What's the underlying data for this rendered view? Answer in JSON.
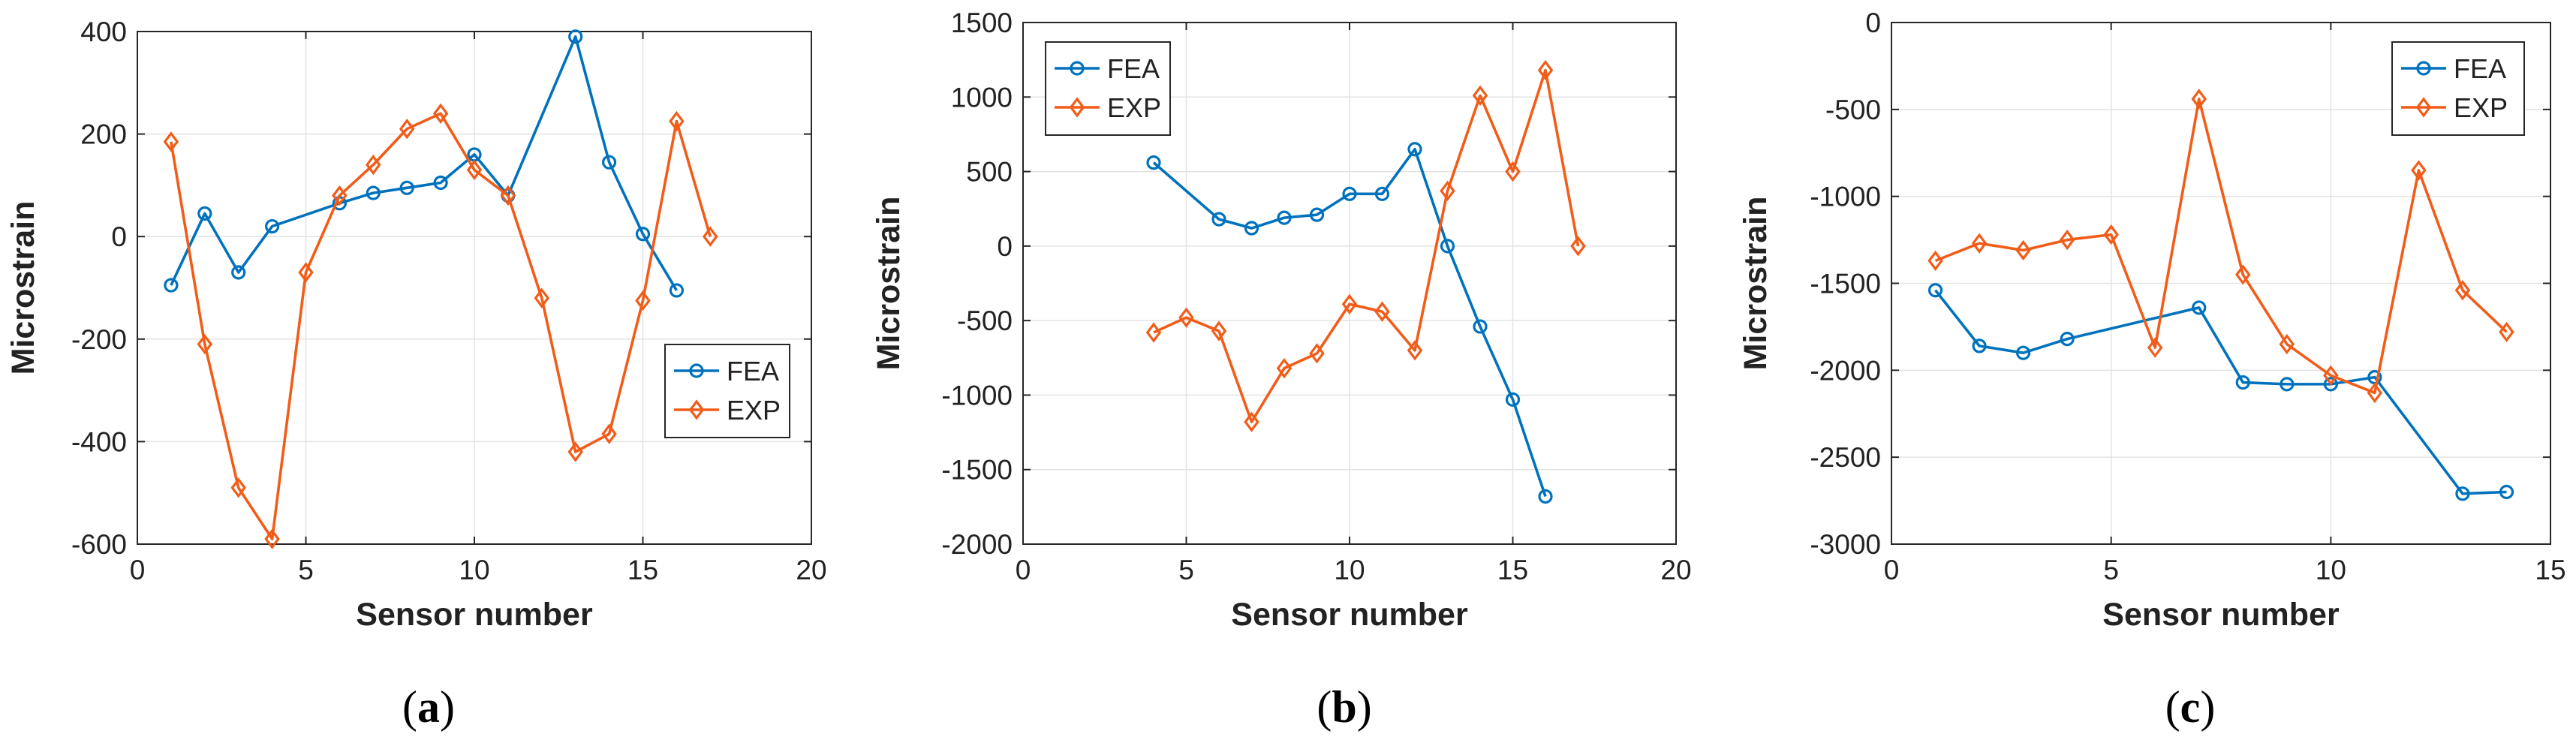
{
  "colors": {
    "fea": "#0072BD",
    "exp": "#F25C19",
    "axis": "#262626",
    "grid": "#e3e3e3"
  },
  "chart_data": [
    {
      "type": "line",
      "caption_letter": "a",
      "xlabel": "Sensor number",
      "ylabel": "Microstrain",
      "xlim": [
        0,
        20
      ],
      "ylim": [
        -600,
        400
      ],
      "xticks": [
        0,
        5,
        10,
        15,
        20
      ],
      "yticks": [
        -600,
        -400,
        -200,
        0,
        200,
        400
      ],
      "xtick_labels": [
        "0",
        "5",
        "10",
        "15",
        "20"
      ],
      "ytick_labels": [
        "-600",
        "-400",
        "-200",
        "0",
        "200",
        "400"
      ],
      "grid": true,
      "legend_position": "bottom-right",
      "series": [
        {
          "name": "FEA",
          "marker": "circle",
          "x": [
            1,
            2,
            3,
            4,
            6,
            7,
            8,
            9,
            10,
            11,
            13,
            14,
            15,
            16
          ],
          "y": [
            -95,
            45,
            -70,
            20,
            65,
            85,
            95,
            105,
            160,
            80,
            390,
            145,
            5,
            -105
          ]
        },
        {
          "name": "EXP",
          "marker": "diamond",
          "x": [
            1,
            2,
            3,
            4,
            5,
            6,
            7,
            8,
            9,
            10,
            11,
            12,
            13,
            14,
            15,
            16,
            17
          ],
          "y": [
            185,
            -210,
            -490,
            -590,
            -70,
            80,
            140,
            210,
            240,
            130,
            80,
            -120,
            -420,
            -385,
            -125,
            225,
            0
          ]
        }
      ]
    },
    {
      "type": "line",
      "caption_letter": "b",
      "xlabel": "Sensor number",
      "ylabel": "Microstrain",
      "xlim": [
        0,
        20
      ],
      "ylim": [
        -2000,
        1500
      ],
      "xticks": [
        0,
        5,
        10,
        15,
        20
      ],
      "yticks": [
        -2000,
        -1500,
        -1000,
        -500,
        0,
        500,
        1000,
        1500
      ],
      "xtick_labels": [
        "0",
        "5",
        "10",
        "15",
        "20"
      ],
      "ytick_labels": [
        "-2000",
        "-1500",
        "-1000",
        "-500",
        "0",
        "500",
        "1000",
        "1500"
      ],
      "grid": true,
      "legend_position": "top-left",
      "series": [
        {
          "name": "FEA",
          "marker": "circle",
          "x": [
            4,
            6,
            7,
            8,
            9,
            10,
            11,
            12,
            13,
            14,
            15,
            16
          ],
          "y": [
            560,
            180,
            120,
            190,
            210,
            350,
            350,
            650,
            0,
            -540,
            -1030,
            -1680
          ]
        },
        {
          "name": "EXP",
          "marker": "diamond",
          "x": [
            4,
            5,
            6,
            7,
            8,
            9,
            10,
            11,
            12,
            13,
            14,
            15,
            16,
            17
          ],
          "y": [
            -580,
            -480,
            -570,
            -1180,
            -820,
            -720,
            -390,
            -440,
            -700,
            370,
            1010,
            500,
            1180,
            0
          ]
        }
      ]
    },
    {
      "type": "line",
      "caption_letter": "c",
      "xlabel": "Sensor number",
      "ylabel": "Microstrain",
      "xlim": [
        0,
        15
      ],
      "ylim": [
        -3000,
        0
      ],
      "xticks": [
        0,
        5,
        10,
        15
      ],
      "yticks": [
        -3000,
        -2500,
        -2000,
        -1500,
        -1000,
        -500,
        0
      ],
      "xtick_labels": [
        "0",
        "5",
        "10",
        "15"
      ],
      "ytick_labels": [
        "-3000",
        "-2500",
        "-2000",
        "-1500",
        "-1000",
        "-500",
        "0"
      ],
      "grid": true,
      "legend_position": "top-right",
      "series": [
        {
          "name": "FEA",
          "marker": "circle",
          "x": [
            1,
            2,
            3,
            4,
            7,
            8,
            9,
            10,
            11,
            13,
            14
          ],
          "y": [
            -1540,
            -1860,
            -1900,
            -1820,
            -1640,
            -2070,
            -2080,
            -2080,
            -2040,
            -2710,
            -2700
          ]
        },
        {
          "name": "EXP",
          "marker": "diamond",
          "x": [
            1,
            2,
            3,
            4,
            5,
            6,
            7,
            8,
            9,
            10,
            11,
            12,
            13,
            14
          ],
          "y": [
            -1370,
            -1270,
            -1310,
            -1250,
            -1220,
            -1870,
            -440,
            -1450,
            -1850,
            -2030,
            -2130,
            -850,
            -1540,
            -1780
          ]
        }
      ]
    }
  ]
}
